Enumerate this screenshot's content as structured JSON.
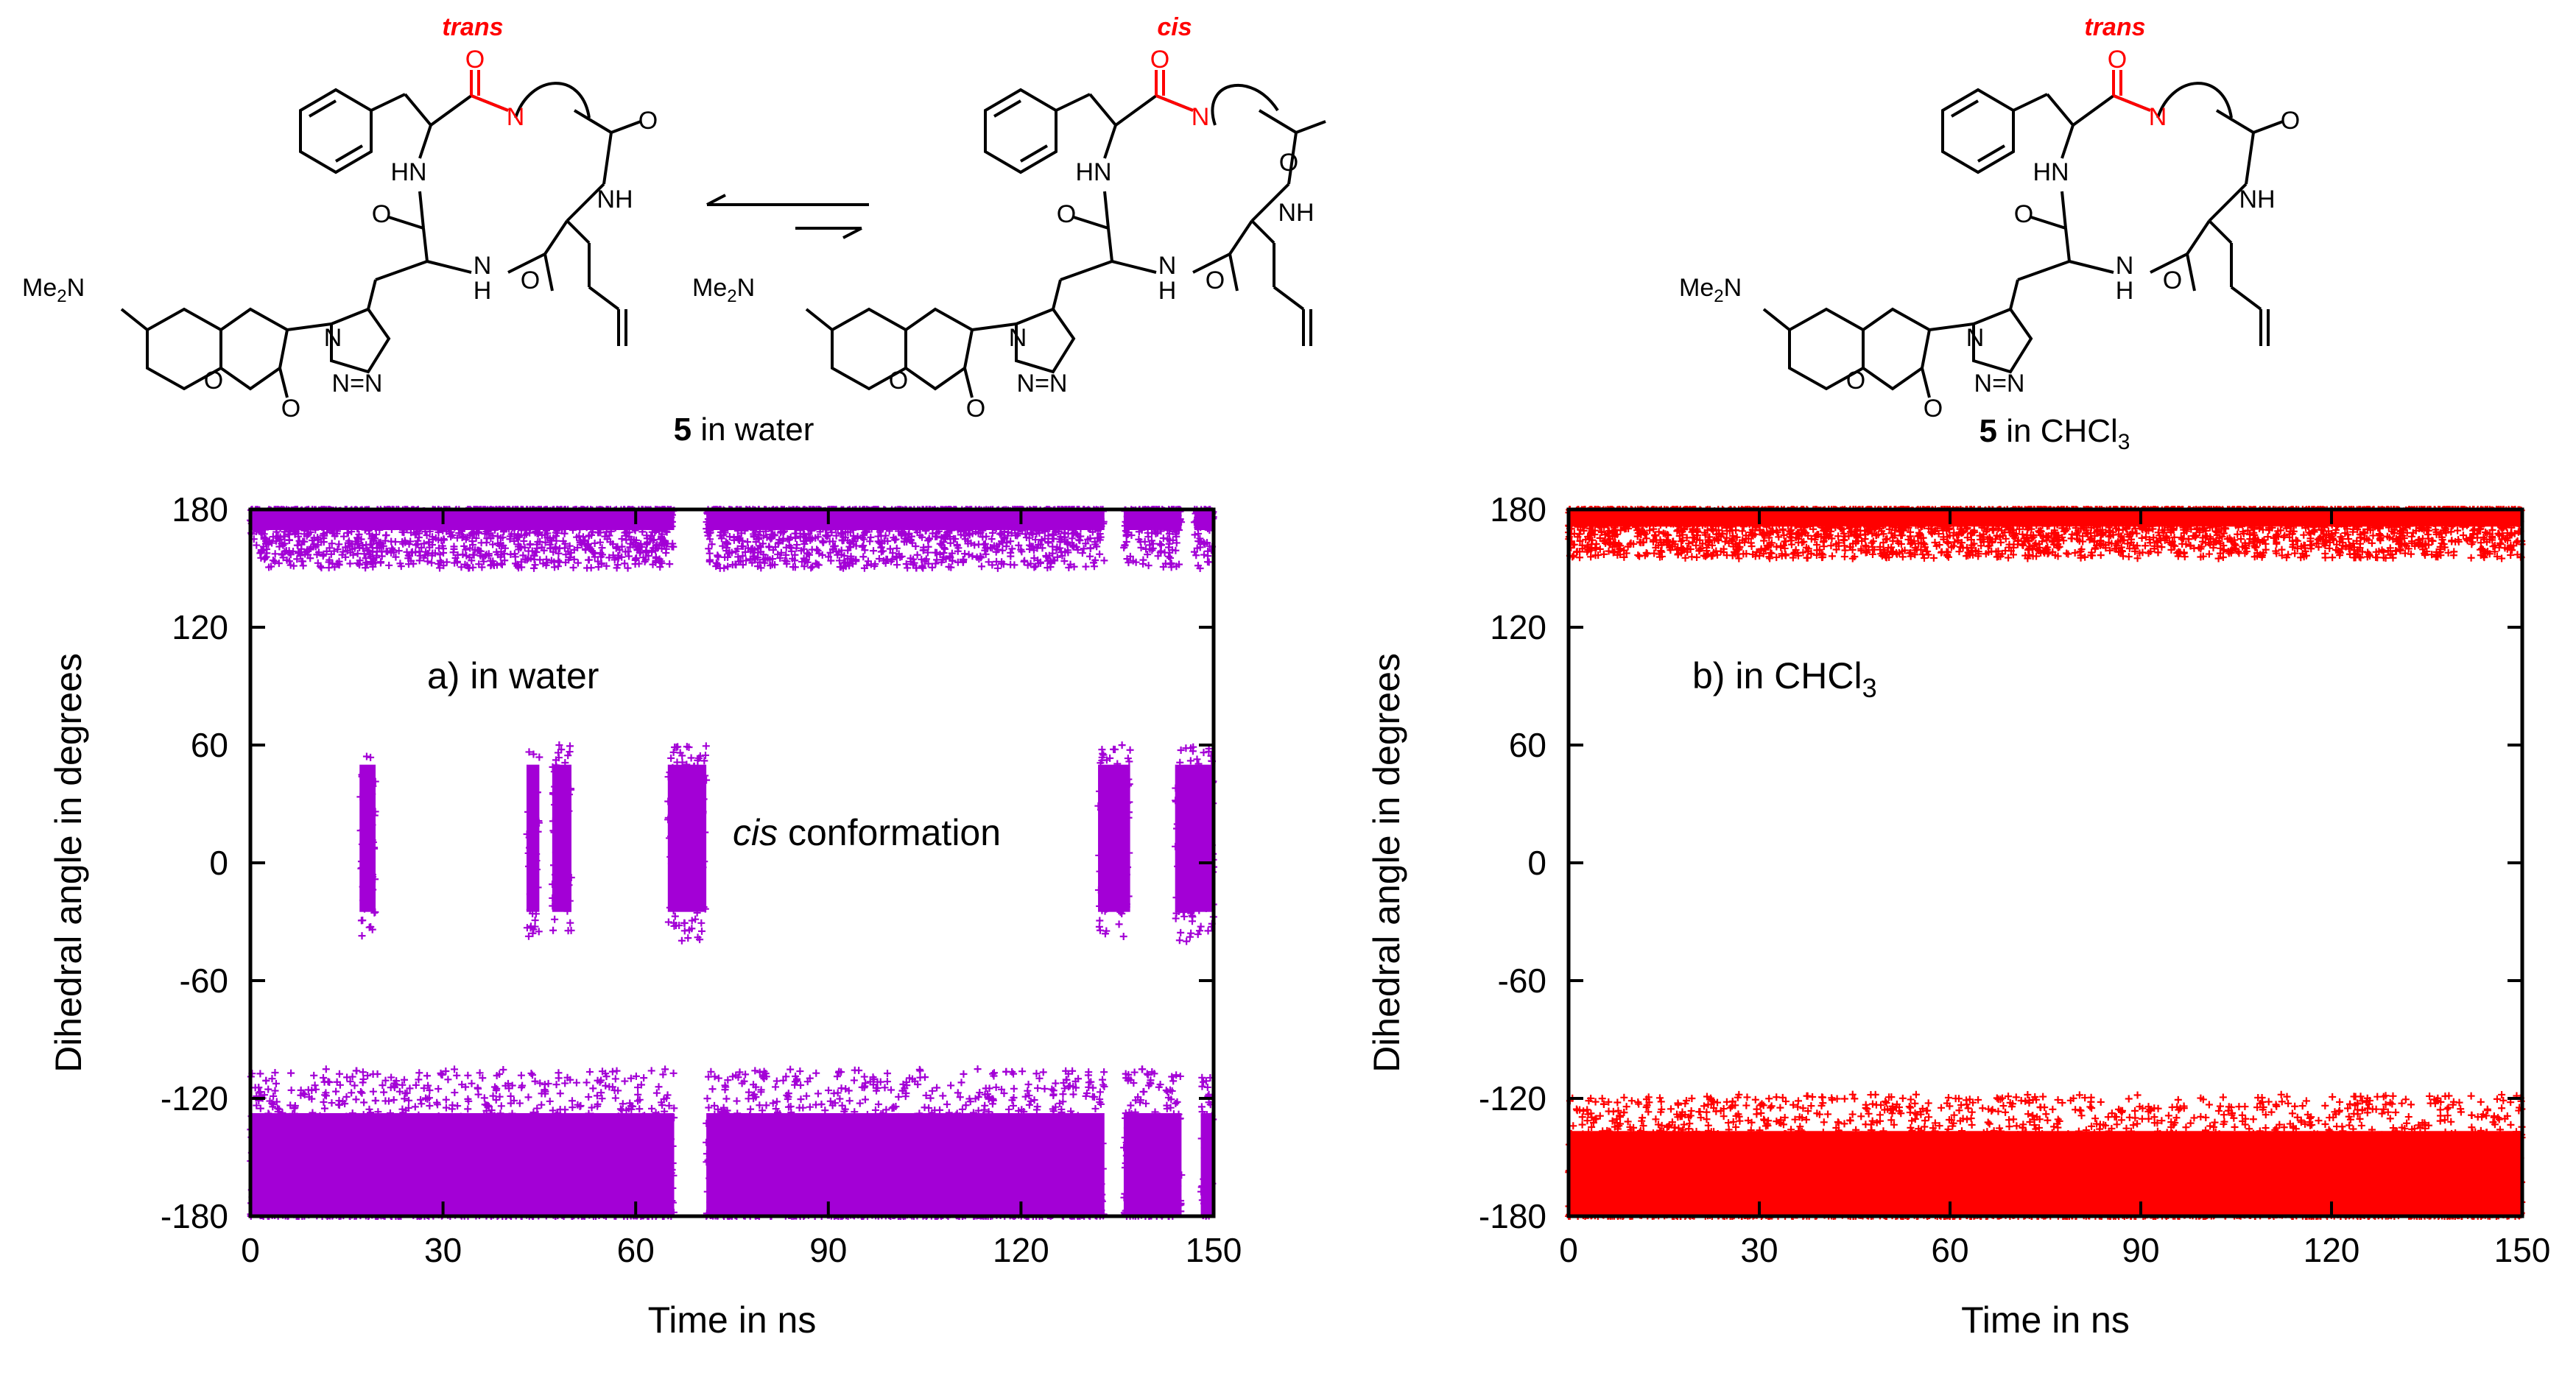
{
  "structures": {
    "water_trans_label": "trans",
    "water_cis_label": "cis",
    "chcl3_trans_label": "trans",
    "compound_number": "5",
    "water_caption_text": "in water",
    "chcl3_caption_text": "in CHCl",
    "chcl3_caption_sub": "3",
    "nme2_label": "Me",
    "nme2_sub": "2",
    "nme2_n": "N",
    "atom_hn": "HN",
    "atom_nh": "NH",
    "atom_n": "N",
    "atom_h": "H",
    "atom_o": "O",
    "atom_n_n": "N=N"
  },
  "chart_data": [
    {
      "type": "scatter",
      "panel": "a",
      "annotation": "a) in water",
      "annotation_extra": "",
      "annotation_sub": "",
      "inline_label_italic": "cis",
      "inline_label_rest": " conformation",
      "xlabel": "Time in ns",
      "ylabel": "Dihedral angle in degrees",
      "xlim": [
        0,
        150
      ],
      "ylim": [
        -180,
        180
      ],
      "xticks": [
        0,
        30,
        60,
        90,
        120,
        150
      ],
      "yticks": [
        -180,
        -120,
        -60,
        0,
        60,
        120,
        180
      ],
      "color": "#a300d6",
      "marker": "+",
      "series": [
        {
          "name": "trans (upper, ~180)",
          "x_ranges": [
            [
              0,
              66
            ],
            [
              71,
              133
            ],
            [
              136,
              145
            ],
            [
              147,
              150
            ]
          ],
          "y_range": [
            150,
            180
          ]
        },
        {
          "name": "trans (lower, ~-180)",
          "x_ranges": [
            [
              0,
              66
            ],
            [
              71,
              133
            ],
            [
              136,
              145
            ],
            [
              148,
              150
            ]
          ],
          "y_range": [
            -180,
            -105
          ]
        },
        {
          "name": "cis conformation",
          "x_ranges": [
            [
              17,
              19.5
            ],
            [
              43,
              45
            ],
            [
              47,
              50
            ],
            [
              65,
              71
            ],
            [
              132,
              137
            ],
            [
              144,
              150
            ]
          ],
          "y_range": [
            -40,
            60
          ]
        }
      ]
    },
    {
      "type": "scatter",
      "panel": "b",
      "annotation": "b) in CHCl",
      "annotation_sub": "3",
      "xlabel": "Time in ns",
      "ylabel": "Dihedral angle in degrees",
      "xlim": [
        0,
        150
      ],
      "ylim": [
        -180,
        180
      ],
      "xticks": [
        0,
        30,
        60,
        90,
        120,
        150
      ],
      "yticks": [
        -180,
        -120,
        -60,
        0,
        60,
        120,
        180
      ],
      "color": "#ff0000",
      "marker": "+",
      "series": [
        {
          "name": "trans (upper, ~180)",
          "x_ranges": [
            [
              0,
              150
            ]
          ],
          "y_range": [
            155,
            180
          ]
        },
        {
          "name": "trans (lower, ~-180)",
          "x_ranges": [
            [
              0,
              150
            ]
          ],
          "y_range": [
            -180,
            -118
          ]
        }
      ]
    }
  ]
}
